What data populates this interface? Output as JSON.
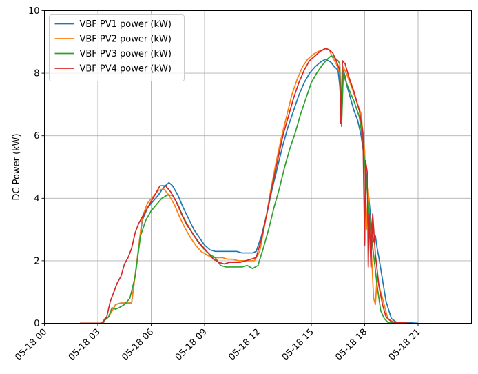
{
  "chart_data": {
    "type": "line",
    "title": "",
    "xlabel": "",
    "ylabel": "DC Power (kW)",
    "xlim": [
      0,
      24
    ],
    "ylim": [
      0,
      10
    ],
    "grid": true,
    "legend_position": "top-left",
    "x_units": "hours after 05-18 00:00",
    "x_ticks": [
      {
        "value": 0,
        "label": "05-18 00"
      },
      {
        "value": 3,
        "label": "05-18 03"
      },
      {
        "value": 6,
        "label": "05-18 06"
      },
      {
        "value": 9,
        "label": "05-18 09"
      },
      {
        "value": 12,
        "label": "05-18 12"
      },
      {
        "value": 15,
        "label": "05-18 15"
      },
      {
        "value": 18,
        "label": "05-18 18"
      },
      {
        "value": 21,
        "label": "05-18 21"
      }
    ],
    "y_ticks": [
      {
        "value": 0,
        "label": "0"
      },
      {
        "value": 2,
        "label": "2"
      },
      {
        "value": 4,
        "label": "4"
      },
      {
        "value": 6,
        "label": "6"
      },
      {
        "value": 8,
        "label": "8"
      },
      {
        "value": 10,
        "label": "10"
      }
    ],
    "series": [
      {
        "name": "VBF PV1 power (kW)",
        "color": "#1f77b4",
        "x": [
          2.0,
          3.3,
          3.4,
          3.6,
          3.8,
          4.0,
          4.3,
          4.6,
          4.9,
          5.2,
          5.5,
          5.8,
          6.1,
          6.4,
          6.7,
          7.0,
          7.2,
          7.5,
          7.8,
          8.1,
          8.4,
          8.7,
          9.0,
          9.3,
          9.6,
          9.9,
          10.2,
          10.5,
          10.8,
          11.1,
          11.4,
          11.7,
          11.9,
          12.2,
          12.5,
          12.8,
          13.1,
          13.4,
          13.7,
          14.0,
          14.3,
          14.6,
          14.9,
          15.2,
          15.5,
          15.8,
          16.1,
          16.3,
          16.5,
          16.6,
          16.7,
          16.8,
          16.9,
          17.0,
          17.2,
          17.4,
          17.6,
          17.8,
          18.0,
          18.2,
          18.4,
          18.5,
          18.6,
          18.7,
          18.8,
          19.0,
          19.2,
          19.5,
          19.8,
          20.0,
          20.5,
          21.0
        ],
        "values": [
          0.0,
          0.0,
          0.15,
          0.2,
          0.4,
          0.6,
          0.65,
          0.65,
          0.65,
          2.0,
          3.3,
          3.7,
          3.9,
          4.1,
          4.35,
          4.5,
          4.4,
          4.1,
          3.7,
          3.35,
          3.0,
          2.75,
          2.5,
          2.35,
          2.3,
          2.3,
          2.3,
          2.3,
          2.3,
          2.25,
          2.25,
          2.25,
          2.3,
          2.8,
          3.5,
          4.3,
          5.0,
          5.7,
          6.3,
          6.8,
          7.3,
          7.7,
          8.0,
          8.2,
          8.35,
          8.45,
          8.35,
          8.2,
          8.1,
          7.6,
          6.5,
          8.1,
          7.9,
          7.6,
          7.2,
          6.8,
          6.5,
          6.0,
          5.2,
          4.2,
          3.0,
          2.6,
          2.8,
          2.4,
          2.1,
          1.4,
          0.7,
          0.15,
          0.03,
          0.02,
          0.02,
          0.0
        ]
      },
      {
        "name": "VBF PV2 power (kW)",
        "color": "#ff7f0e",
        "x": [
          2.0,
          3.3,
          3.4,
          3.6,
          3.8,
          4.0,
          4.3,
          4.6,
          4.9,
          5.2,
          5.5,
          5.8,
          6.1,
          6.4,
          6.7,
          7.0,
          7.3,
          7.6,
          7.9,
          8.2,
          8.5,
          8.8,
          9.1,
          9.4,
          9.7,
          10.0,
          10.3,
          10.6,
          10.9,
          11.2,
          11.5,
          11.8,
          12.1,
          12.4,
          12.7,
          13.0,
          13.3,
          13.6,
          13.9,
          14.2,
          14.5,
          14.8,
          15.1,
          15.4,
          15.7,
          16.0,
          16.2,
          16.4,
          16.6,
          16.7,
          16.8,
          17.0,
          17.3,
          17.6,
          17.8,
          18.0,
          18.1,
          18.2,
          18.3,
          18.4,
          18.5,
          18.6,
          18.7,
          18.8,
          19.0,
          19.3,
          19.6,
          20.0,
          20.5
        ],
        "values": [
          0.0,
          0.0,
          0.15,
          0.2,
          0.4,
          0.6,
          0.65,
          0.65,
          0.65,
          2.0,
          3.4,
          3.85,
          4.05,
          4.25,
          4.3,
          4.1,
          3.8,
          3.4,
          3.05,
          2.75,
          2.5,
          2.3,
          2.2,
          2.1,
          2.1,
          2.1,
          2.05,
          2.05,
          2.0,
          2.0,
          2.0,
          2.0,
          2.3,
          3.2,
          4.2,
          5.1,
          5.9,
          6.6,
          7.3,
          7.8,
          8.2,
          8.45,
          8.6,
          8.7,
          8.75,
          8.75,
          8.5,
          8.3,
          8.0,
          6.5,
          8.2,
          7.95,
          7.5,
          7.0,
          6.7,
          5.5,
          3.0,
          4.3,
          3.0,
          2.0,
          0.8,
          0.6,
          1.5,
          1.2,
          0.8,
          0.15,
          0.05,
          0.02,
          0.0
        ]
      },
      {
        "name": "VBF PV3 power (kW)",
        "color": "#2ca02c",
        "x": [
          2.0,
          3.3,
          3.4,
          3.6,
          3.8,
          4.0,
          4.2,
          4.5,
          4.8,
          5.1,
          5.4,
          5.7,
          6.0,
          6.3,
          6.6,
          6.9,
          7.2,
          7.5,
          7.8,
          8.1,
          8.4,
          8.7,
          9.0,
          9.3,
          9.6,
          9.9,
          10.2,
          10.5,
          10.8,
          11.1,
          11.4,
          11.7,
          12.0,
          12.3,
          12.6,
          12.9,
          13.2,
          13.5,
          13.8,
          14.1,
          14.4,
          14.7,
          15.0,
          15.3,
          15.6,
          15.9,
          16.1,
          16.3,
          16.5,
          16.6,
          16.7,
          16.8,
          16.9,
          17.1,
          17.4,
          17.7,
          17.9,
          18.1,
          18.3,
          18.5,
          18.7,
          18.9,
          19.1,
          19.3,
          19.6,
          20.0,
          20.5
        ],
        "values": [
          0.0,
          0.0,
          0.1,
          0.2,
          0.5,
          0.45,
          0.5,
          0.6,
          0.8,
          1.5,
          2.8,
          3.3,
          3.6,
          3.8,
          4.0,
          4.1,
          4.1,
          3.8,
          3.4,
          3.1,
          2.8,
          2.55,
          2.35,
          2.2,
          2.1,
          1.85,
          1.8,
          1.8,
          1.8,
          1.8,
          1.85,
          1.75,
          1.85,
          2.4,
          3.0,
          3.7,
          4.3,
          5.0,
          5.6,
          6.1,
          6.7,
          7.2,
          7.7,
          8.0,
          8.25,
          8.45,
          8.55,
          8.5,
          8.4,
          8.3,
          6.3,
          8.1,
          7.8,
          7.5,
          7.1,
          6.6,
          5.8,
          4.5,
          3.2,
          2.2,
          1.2,
          0.4,
          0.15,
          0.03,
          0.02,
          0.02,
          0.0
        ]
      },
      {
        "name": "VBF PV4 power (kW)",
        "color": "#d62728",
        "x": [
          2.0,
          3.2,
          3.35,
          3.5,
          3.7,
          3.9,
          4.1,
          4.3,
          4.5,
          4.7,
          4.9,
          5.1,
          5.3,
          5.6,
          5.9,
          6.2,
          6.5,
          6.8,
          7.1,
          7.4,
          7.7,
          8.0,
          8.3,
          8.6,
          8.9,
          9.2,
          9.5,
          9.8,
          10.1,
          10.4,
          10.7,
          11.0,
          11.3,
          11.6,
          11.9,
          12.2,
          12.5,
          12.8,
          13.1,
          13.4,
          13.7,
          14.0,
          14.3,
          14.6,
          14.9,
          15.2,
          15.5,
          15.8,
          16.0,
          16.2,
          16.4,
          16.6,
          16.65,
          16.75,
          16.9,
          17.1,
          17.4,
          17.7,
          17.9,
          18.0,
          18.05,
          18.15,
          18.2,
          18.25,
          18.35,
          18.45,
          18.6,
          18.8,
          19.0,
          19.2,
          19.5,
          19.8,
          20.0,
          20.5
        ],
        "values": [
          0.0,
          0.0,
          0.1,
          0.2,
          0.7,
          1.0,
          1.3,
          1.5,
          1.9,
          2.1,
          2.4,
          2.9,
          3.2,
          3.5,
          3.8,
          4.1,
          4.4,
          4.4,
          4.2,
          3.9,
          3.5,
          3.15,
          2.9,
          2.65,
          2.45,
          2.25,
          2.05,
          1.95,
          1.9,
          1.95,
          1.95,
          1.95,
          2.0,
          2.05,
          2.1,
          2.7,
          3.5,
          4.4,
          5.2,
          6.0,
          6.6,
          7.2,
          7.7,
          8.1,
          8.4,
          8.55,
          8.7,
          8.8,
          8.75,
          8.65,
          8.4,
          8.1,
          6.4,
          8.4,
          8.3,
          7.9,
          7.4,
          6.8,
          6.1,
          2.5,
          5.2,
          4.8,
          1.8,
          3.5,
          1.8,
          3.5,
          2.2,
          1.2,
          0.6,
          0.2,
          0.05,
          0.02,
          0.02,
          0.0
        ]
      }
    ]
  }
}
